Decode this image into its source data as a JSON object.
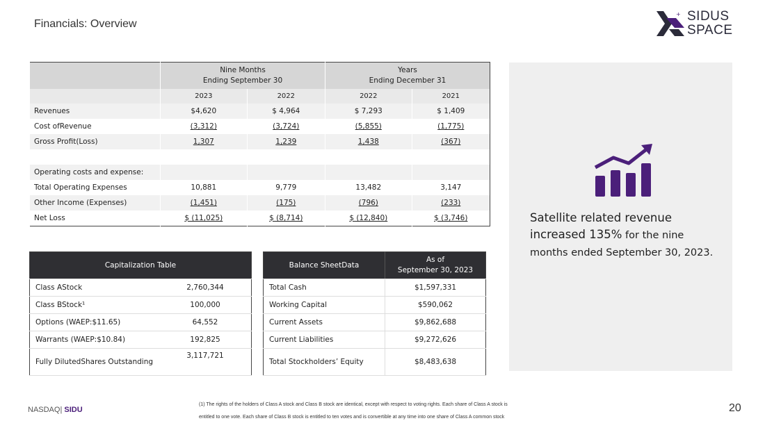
{
  "page": {
    "title": "Financials: Overview",
    "page_number": "20"
  },
  "logo": {
    "line1": "SIDUS",
    "line2": "SPACE",
    "brand_color": "#4b1f7a"
  },
  "financials": {
    "group1": "Nine Months",
    "group1_sub": "Ending September 30",
    "group2": "Years",
    "group2_sub": "Ending December 31",
    "years": [
      "2023",
      "2022",
      "2022",
      "2021"
    ],
    "rows": [
      {
        "label": "Revenues",
        "values": [
          "$4,620",
          "$ 4,964",
          "$ 7,293",
          "$ 1,409"
        ]
      },
      {
        "label": "Cost ofRevenue",
        "values": [
          "(3,312)",
          "(3,724)",
          "(5,855)",
          "(1,775)"
        ]
      },
      {
        "label": "Gross Profit(Loss)",
        "values": [
          "1,307",
          "1,239",
          "1,438",
          "(367)"
        ]
      },
      {
        "label": "",
        "values": [
          "",
          "",
          "",
          ""
        ]
      },
      {
        "label": "Operating costs and expense:",
        "values": [
          "",
          "",
          "",
          ""
        ]
      },
      {
        "label": "Total Operating Expenses",
        "values": [
          "10,881",
          "9,779",
          "13,482",
          "3,147"
        ]
      },
      {
        "label": "Other Income (Expenses)",
        "values": [
          "(1,451)",
          "(175)",
          "(796)",
          "(233)"
        ]
      },
      {
        "label": "Net Loss",
        "values": [
          "$ (11,025)",
          "$ (8,714)",
          "$ (12,840)",
          "$ (3,746)"
        ]
      }
    ]
  },
  "capitalization": {
    "header": "Capitalization Table",
    "rows": [
      {
        "label": "Class AStock",
        "value": "2,760,344"
      },
      {
        "label": "Class BStock¹",
        "value": "100,000"
      },
      {
        "label": "Options (WAEP:$11.65)",
        "value": "64,552"
      },
      {
        "label": "Warrants (WAEP:$10.84)",
        "value": "192,825"
      },
      {
        "label": "Fully DilutedShares Outstanding",
        "value": "3,117,721"
      }
    ]
  },
  "balance_sheet": {
    "header": "Balance SheetData",
    "as_of": "As of",
    "as_of_date": "September 30, 2023",
    "rows": [
      {
        "label": "Total Cash",
        "value": "$1,597,331"
      },
      {
        "label": "Working Capital",
        "value": "$590,062"
      },
      {
        "label": "Current Assets",
        "value": "$9,862,688"
      },
      {
        "label": "Current Liabilities",
        "value": "$9,272,626"
      },
      {
        "label": "Total Stockholders’ Equity",
        "value": "$8,483,638"
      }
    ]
  },
  "highlight": {
    "icon": "growth-chart-icon",
    "text_bold": "Satellite related revenue increased 135%",
    "text_rest": " for the nine months ended September 30, 2023."
  },
  "footnote": {
    "line1": "(1) The rights of the holders of Class A stock and Class B stock are identical,  except with respect to voting rights. Each share of Class A stock is",
    "line2": "entitled to one vote. Each share of Class B stock is entitled to ten votes and is convertible at any  time into one share of Class A common stock"
  },
  "ticker": {
    "exchange": "NASDAQ|",
    "symbol": "SIDU"
  }
}
